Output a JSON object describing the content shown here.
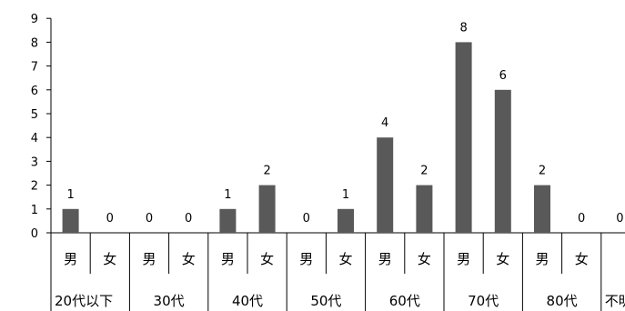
{
  "chart_data": {
    "type": "bar",
    "ylim": [
      0,
      9
    ],
    "y_ticks": [
      "0",
      "1",
      "2",
      "3",
      "4",
      "5",
      "6",
      "7",
      "8",
      "9"
    ],
    "grid": false,
    "groups": [
      "20代以下",
      "30代",
      "40代",
      "50代",
      "60代",
      "70代",
      "80代",
      "不明"
    ],
    "categories": [
      "男",
      "女",
      "男",
      "女",
      "男",
      "女",
      "男",
      "女",
      "男",
      "女",
      "男",
      "女",
      "男",
      "女"
    ],
    "values": [
      1,
      0,
      0,
      0,
      1,
      2,
      0,
      1,
      4,
      2,
      8,
      6,
      2,
      0
    ],
    "extra_label": "0",
    "bar_color": "#595959"
  }
}
